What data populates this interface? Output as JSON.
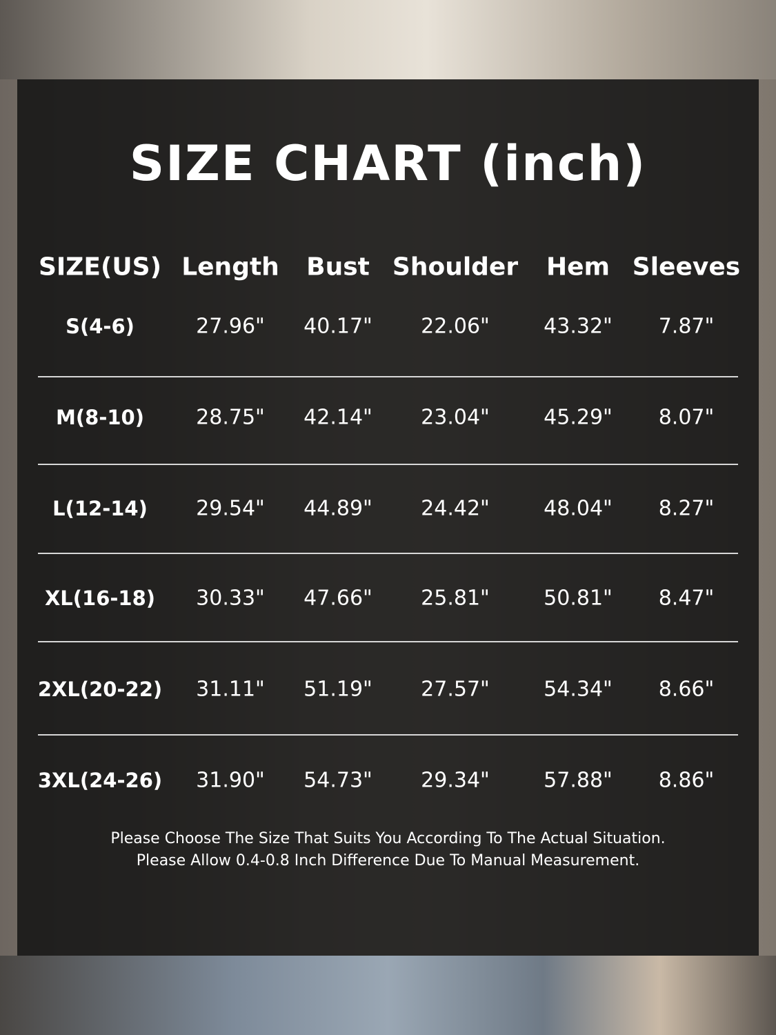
{
  "title": "SIZE CHART (inch)",
  "table": {
    "headers": [
      "SIZE(US)",
      "Length",
      "Bust",
      "Shoulder",
      "Hem",
      "Sleeves"
    ],
    "rows": [
      [
        "S(4-6)",
        "27.96\"",
        "40.17\"",
        "22.06\"",
        "43.32\"",
        "7.87\""
      ],
      [
        "M(8-10)",
        "28.75\"",
        "42.14\"",
        "23.04\"",
        "45.29\"",
        "8.07\""
      ],
      [
        "L(12-14)",
        "29.54\"",
        "44.89\"",
        "24.42\"",
        "48.04\"",
        "8.27\""
      ],
      [
        "XL(16-18)",
        "30.33\"",
        "47.66\"",
        "25.81\"",
        "50.81\"",
        "8.47\""
      ],
      [
        "2XL(20-22)",
        "31.11\"",
        "51.19\"",
        "27.57\"",
        "54.34\"",
        "8.66\""
      ],
      [
        "3XL(24-26)",
        "31.90\"",
        "54.73\"",
        "29.34\"",
        "57.88\"",
        "8.86\""
      ]
    ]
  },
  "notes": [
    "Please Choose The Size That Suits You According To The Actual Situation.",
    "Please Allow 0.4-0.8 Inch Difference Due To Manual Measurement."
  ]
}
